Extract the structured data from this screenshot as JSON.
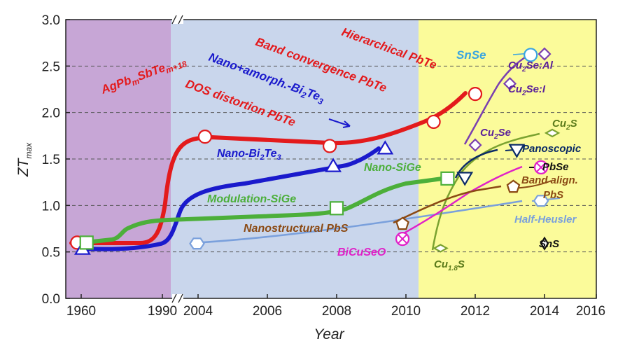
{
  "chart_data": {
    "type": "line",
    "xlabel": "Year",
    "ylabel": "ZT",
    "ylabel_sub": "max",
    "ylim": [
      0,
      3.0
    ],
    "y_ticks": [
      "0.0",
      "0.5",
      "1.0",
      "1.5",
      "2.0",
      "2.5",
      "3.0"
    ],
    "x_ticks": [
      "1960",
      "1990",
      "2004",
      "2006",
      "2008",
      "2010",
      "2012",
      "2014",
      "2016"
    ],
    "era_colors": [
      "#c7a6d6",
      "#c9d6ec",
      "#fbfb9a"
    ],
    "series": [
      {
        "key": "red",
        "color": "#e31a1c",
        "marker": "circle",
        "points": [
          [
            1958.5,
            0.6
          ],
          [
            2004.2,
            1.74
          ],
          [
            2007.8,
            1.64
          ],
          [
            2010.8,
            1.9
          ],
          [
            2012.0,
            2.2
          ]
        ]
      },
      {
        "key": "blue",
        "color": "#1a1acc",
        "marker": "triangle",
        "points": [
          [
            1960.5,
            0.53
          ],
          [
            2007.9,
            1.42
          ],
          [
            2009.4,
            1.61
          ]
        ]
      },
      {
        "key": "green",
        "color": "#4caf3a",
        "marker": "square",
        "points": [
          [
            1962,
            0.6
          ],
          [
            2008.0,
            0.97
          ],
          [
            2011.2,
            1.29
          ]
        ]
      },
      {
        "key": "halfheusler",
        "color": "#7aa0dc",
        "marker": "hexagon",
        "points": [
          [
            2003.6,
            0.59
          ],
          [
            2013.9,
            1.05
          ]
        ]
      },
      {
        "key": "cu2se",
        "color": "#7a3fb0",
        "marker": "diamond",
        "points": [
          [
            2012.0,
            1.65
          ],
          [
            2013.0,
            2.31
          ],
          [
            2014.0,
            2.63
          ]
        ]
      },
      {
        "key": "cu2s",
        "color": "#7aa230",
        "marker": "diamond_open",
        "points": [
          [
            2011.0,
            0.54
          ],
          [
            2014.3,
            1.78
          ]
        ]
      },
      {
        "key": "panoscopic",
        "color": "#0a2a66",
        "marker": "triangle_down",
        "points": [
          [
            2011.7,
            1.3
          ],
          [
            2013.2,
            1.6
          ]
        ]
      },
      {
        "key": "pbse",
        "color": "#e020c8",
        "marker": "circle_x",
        "points": [
          [
            2009.9,
            0.64
          ],
          [
            2013.9,
            1.41
          ]
        ]
      },
      {
        "key": "pbs",
        "color": "#8b4a14",
        "marker": "pentagon",
        "points": [
          [
            2009.9,
            0.8
          ],
          [
            2013.1,
            1.2
          ]
        ]
      },
      {
        "key": "snse",
        "color": "#3aa5e0",
        "marker": "circle_open",
        "points": [
          [
            2013.6,
            2.62
          ]
        ]
      },
      {
        "key": "sns",
        "color": "#111111",
        "marker": "diamond_open",
        "points": [
          [
            2014.0,
            0.59
          ]
        ]
      }
    ],
    "annotations": [
      {
        "key": "agpb",
        "text": "AgPb",
        "sub": "m",
        "text2": "SbTe",
        "sub2": "m+18",
        "color": "#e31a1c"
      },
      {
        "key": "dos",
        "text": "DOS distortion PbTe",
        "color": "#e31a1c"
      },
      {
        "key": "band_conv",
        "text": "Band convergence PbTe",
        "color": "#e31a1c"
      },
      {
        "key": "hier",
        "text": "Hierarchical PbTe",
        "color": "#e31a1c"
      },
      {
        "key": "nano_amorph",
        "text": "Nano+amorph.-Bi",
        "sub": "2",
        "text2": "Te",
        "sub2": "3",
        "color": "#1a1acc"
      },
      {
        "key": "nano_bi",
        "text": "Nano-Bi",
        "sub": "2",
        "text2": "Te",
        "sub2": "3",
        "color": "#1a1acc"
      },
      {
        "key": "nano_sige",
        "text": "Nano-SiGe",
        "color": "#4caf3a"
      },
      {
        "key": "mod_sige",
        "text": "Modulation-SiGe",
        "color": "#4caf3a"
      },
      {
        "key": "nano_pbs",
        "text": "Nanostructural PbS",
        "color": "#8b4a14"
      },
      {
        "key": "bicuseo",
        "text": "BiCuSeO",
        "color": "#e020c8"
      },
      {
        "key": "snse",
        "text": "SnSe",
        "color": "#3aa5e0"
      },
      {
        "key": "cu2seal",
        "text": "Cu",
        "sub": "2",
        "text2": "Se:Al",
        "color": "#5a1f99"
      },
      {
        "key": "cu2sei",
        "text": "Cu",
        "sub": "2",
        "text2": "Se:I",
        "color": "#5a1f99"
      },
      {
        "key": "cu2se",
        "text": "Cu",
        "sub": "2",
        "text2": "Se",
        "color": "#5a1f99"
      },
      {
        "key": "cu2s",
        "text": "Cu",
        "sub": "2",
        "text2": "S",
        "color": "#5a7a1a"
      },
      {
        "key": "cu18s",
        "text": "Cu",
        "sub": "1.8",
        "text2": "S",
        "color": "#5a7a1a"
      },
      {
        "key": "panoscopic",
        "text": "Panoscopic",
        "color": "#0a2a66"
      },
      {
        "key": "pbse",
        "text": "PbSe",
        "color": "#111111"
      },
      {
        "key": "bandalign",
        "text": "Band align.",
        "color": "#8b4a14"
      },
      {
        "key": "pbs",
        "text": "PbS",
        "color": "#8b4a14"
      },
      {
        "key": "halfheusler",
        "text": "Half-Heusler",
        "color": "#7aa0dc"
      },
      {
        "key": "sns",
        "text": "SnS",
        "color": "#111111"
      }
    ]
  }
}
